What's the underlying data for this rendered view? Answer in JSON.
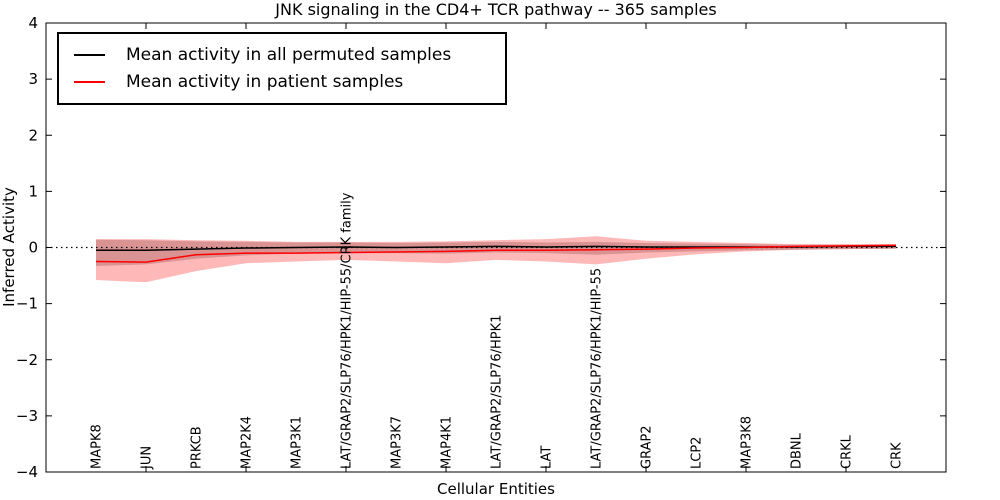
{
  "chart_data": {
    "type": "line",
    "title": "JNK signaling in the CD4+ TCR pathway -- 365 samples",
    "xlabel": "Cellular Entities",
    "ylabel": "Inferred Activity",
    "ylim": [
      -4,
      4
    ],
    "yticks": [
      -4,
      -3,
      -2,
      -1,
      0,
      1,
      2,
      3,
      4
    ],
    "grid": false,
    "legend_position": "upper left",
    "zero_line": {
      "style": "dotted",
      "color": "#000000",
      "y": 0
    },
    "categories": [
      "MAPK8",
      "JUN",
      "PRKCB",
      "MAP2K4",
      "MAP3K1",
      "LAT/GRAP2/SLP76/HPK1/HIP-55/CRK family",
      "MAP3K7",
      "MAP4K1",
      "LAT/GRAP2/SLP76/HPK1",
      "LAT",
      "LAT/GRAP2/SLP76/HPK1/HIP-55",
      "GRAP2",
      "LCP2",
      "MAP3K8",
      "DBNL",
      "CRKL",
      "CRK"
    ],
    "series": [
      {
        "name": "Mean activity in all permuted samples",
        "color": "#000000",
        "band_color": "rgba(0,0,0,0.20)",
        "values": [
          -0.05,
          -0.05,
          -0.03,
          -0.01,
          0.0,
          0.01,
          0.0,
          0.01,
          0.02,
          0.01,
          0.02,
          0.01,
          0.01,
          0.01,
          0.01,
          0.02,
          0.02
        ],
        "band_upper": [
          0.14,
          0.13,
          0.11,
          0.1,
          0.09,
          0.09,
          0.08,
          0.09,
          0.1,
          0.09,
          0.1,
          0.08,
          0.07,
          0.06,
          0.05,
          0.05,
          0.05
        ],
        "band_lower": [
          -0.33,
          -0.3,
          -0.2,
          -0.14,
          -0.11,
          -0.1,
          -0.1,
          -0.11,
          -0.09,
          -0.1,
          -0.13,
          -0.09,
          -0.07,
          -0.05,
          -0.04,
          -0.03,
          -0.02
        ]
      },
      {
        "name": "Mean activity in patient samples",
        "color": "#ff0000",
        "band_color": "rgba(255,0,0,0.28)",
        "values": [
          -0.25,
          -0.26,
          -0.13,
          -0.1,
          -0.1,
          -0.09,
          -0.08,
          -0.07,
          -0.05,
          -0.05,
          -0.04,
          -0.03,
          -0.01,
          0.0,
          0.02,
          0.03,
          0.04
        ],
        "band_upper": [
          0.15,
          0.15,
          0.13,
          0.12,
          0.1,
          0.1,
          0.1,
          0.11,
          0.13,
          0.15,
          0.2,
          0.12,
          0.1,
          0.08,
          0.06,
          0.06,
          0.06
        ],
        "band_lower": [
          -0.58,
          -0.62,
          -0.42,
          -0.28,
          -0.25,
          -0.22,
          -0.25,
          -0.28,
          -0.22,
          -0.25,
          -0.3,
          -0.2,
          -0.12,
          -0.07,
          -0.04,
          -0.03,
          -0.02
        ]
      }
    ]
  }
}
